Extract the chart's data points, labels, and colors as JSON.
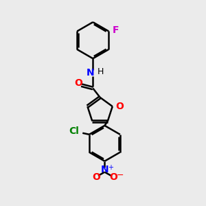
{
  "bg_color": "#ebebeb",
  "bond_color": "#000000",
  "bond_width": 1.8,
  "figsize": [
    3.0,
    3.0
  ],
  "dpi": 100,
  "colors": {
    "F": "#cc00cc",
    "O": "#ff0000",
    "N": "#0000ff",
    "Cl": "#008000",
    "H": "#000000",
    "bond": "#000000"
  }
}
